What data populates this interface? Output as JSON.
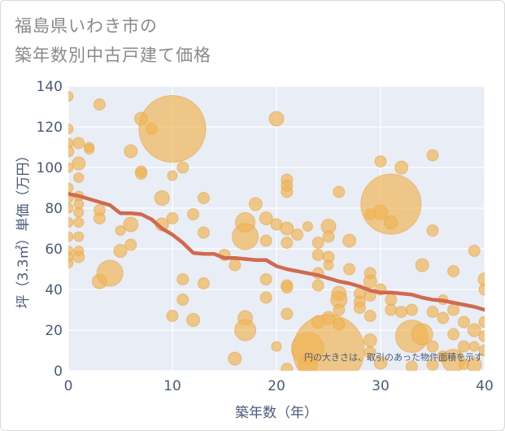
{
  "title_line1": "福島県いわき市の",
  "title_line2": "築年数別中古戸建て価格",
  "colors": {
    "bubble_fill": "#f0b454",
    "bubble_stroke": "#e2a23e",
    "trend_line": "#d06a4e",
    "plot_bg": "#e8edf6",
    "grid": "#ffffff"
  },
  "chart_data": {
    "type": "scatter",
    "xlabel": "築年数（年）",
    "ylabel": "坪（3.3㎡）単価（万円）",
    "xlim": [
      0,
      40
    ],
    "ylim": [
      0,
      140
    ],
    "x_ticks": [
      0,
      10,
      20,
      30,
      40
    ],
    "y_ticks": [
      0,
      20,
      40,
      60,
      80,
      100,
      120,
      140
    ],
    "grid": true,
    "note": "円の大きさは、取引のあった物件面積を示す",
    "trend": {
      "x": [
        0,
        1,
        2,
        3,
        4,
        5,
        6,
        7,
        8,
        9,
        10,
        11,
        12,
        13,
        14,
        15,
        16,
        17,
        18,
        19,
        20,
        21,
        22,
        23,
        24,
        25,
        26,
        27,
        28,
        29,
        30,
        31,
        32,
        33,
        34,
        35,
        36,
        37,
        38,
        39,
        40
      ],
      "y": [
        87,
        86,
        84.5,
        83,
        81.5,
        77.5,
        77.5,
        77,
        74.5,
        70,
        67,
        63,
        58,
        57.5,
        57.5,
        55.5,
        55.5,
        55,
        54.5,
        54.5,
        51.5,
        50,
        49,
        48,
        47,
        45.5,
        44,
        43,
        41.5,
        39.5,
        38.5,
        38.5,
        38,
        37.5,
        36,
        35,
        34.5,
        33.5,
        32.5,
        31.5,
        30
      ]
    },
    "points": [
      {
        "x": 0,
        "y": 135,
        "s": 6
      },
      {
        "x": 0,
        "y": 119,
        "s": 6
      },
      {
        "x": 0,
        "y": 112,
        "s": 6
      },
      {
        "x": 0,
        "y": 108,
        "s": 7
      },
      {
        "x": 0,
        "y": 100,
        "s": 6
      },
      {
        "x": 0,
        "y": 90,
        "s": 6
      },
      {
        "x": 0,
        "y": 85,
        "s": 6
      },
      {
        "x": 0,
        "y": 80,
        "s": 6
      },
      {
        "x": 0,
        "y": 73,
        "s": 6
      },
      {
        "x": 0,
        "y": 66,
        "s": 6
      },
      {
        "x": 0,
        "y": 59,
        "s": 6
      },
      {
        "x": 0,
        "y": 56,
        "s": 6
      },
      {
        "x": 0,
        "y": 53,
        "s": 6
      },
      {
        "x": 1,
        "y": 112,
        "s": 7
      },
      {
        "x": 1,
        "y": 102,
        "s": 8
      },
      {
        "x": 1,
        "y": 95,
        "s": 6
      },
      {
        "x": 1,
        "y": 86,
        "s": 6
      },
      {
        "x": 1,
        "y": 82,
        "s": 6
      },
      {
        "x": 1,
        "y": 78,
        "s": 6
      },
      {
        "x": 1,
        "y": 73,
        "s": 6
      },
      {
        "x": 1,
        "y": 66,
        "s": 6
      },
      {
        "x": 1,
        "y": 59,
        "s": 6
      },
      {
        "x": 1,
        "y": 56,
        "s": 7
      },
      {
        "x": 2,
        "y": 110,
        "s": 6
      },
      {
        "x": 2,
        "y": 109,
        "s": 6
      },
      {
        "x": 3,
        "y": 131,
        "s": 7
      },
      {
        "x": 3,
        "y": 79,
        "s": 7
      },
      {
        "x": 3,
        "y": 75,
        "s": 7
      },
      {
        "x": 3,
        "y": 44,
        "s": 9
      },
      {
        "x": 4,
        "y": 48,
        "s": 16
      },
      {
        "x": 5,
        "y": 59,
        "s": 8
      },
      {
        "x": 5,
        "y": 69,
        "s": 6
      },
      {
        "x": 6,
        "y": 108,
        "s": 8
      },
      {
        "x": 6,
        "y": 72,
        "s": 9
      },
      {
        "x": 6,
        "y": 62,
        "s": 7
      },
      {
        "x": 7,
        "y": 124,
        "s": 8
      },
      {
        "x": 7,
        "y": 98,
        "s": 7
      },
      {
        "x": 7,
        "y": 97,
        "s": 7
      },
      {
        "x": 8,
        "y": 119,
        "s": 7
      },
      {
        "x": 9,
        "y": 85,
        "s": 9
      },
      {
        "x": 9,
        "y": 72,
        "s": 8
      },
      {
        "x": 10,
        "y": 119,
        "s": 41
      },
      {
        "x": 10,
        "y": 96,
        "s": 6
      },
      {
        "x": 10,
        "y": 75,
        "s": 7
      },
      {
        "x": 10,
        "y": 27,
        "s": 7
      },
      {
        "x": 11,
        "y": 100,
        "s": 7
      },
      {
        "x": 11,
        "y": 45,
        "s": 7
      },
      {
        "x": 11,
        "y": 35,
        "s": 7
      },
      {
        "x": 12,
        "y": 77,
        "s": 7
      },
      {
        "x": 12,
        "y": 25,
        "s": 8
      },
      {
        "x": 13,
        "y": 85,
        "s": 7
      },
      {
        "x": 13,
        "y": 68,
        "s": 7
      },
      {
        "x": 13,
        "y": 43,
        "s": 7
      },
      {
        "x": 15,
        "y": 57,
        "s": 7
      },
      {
        "x": 16,
        "y": 52,
        "s": 7
      },
      {
        "x": 16,
        "y": 6,
        "s": 8
      },
      {
        "x": 17,
        "y": 73,
        "s": 12
      },
      {
        "x": 17,
        "y": 66,
        "s": 16
      },
      {
        "x": 17,
        "y": 26,
        "s": 9
      },
      {
        "x": 17,
        "y": 20,
        "s": 13
      },
      {
        "x": 18,
        "y": 82,
        "s": 8
      },
      {
        "x": 19,
        "y": 75,
        "s": 8
      },
      {
        "x": 19,
        "y": 64,
        "s": 7
      },
      {
        "x": 19,
        "y": 45,
        "s": 7
      },
      {
        "x": 19,
        "y": 36,
        "s": 7
      },
      {
        "x": 20,
        "y": 124,
        "s": 9
      },
      {
        "x": 20,
        "y": 72,
        "s": 7
      },
      {
        "x": 20,
        "y": 12,
        "s": 6
      },
      {
        "x": 21,
        "y": 94,
        "s": 7
      },
      {
        "x": 21,
        "y": 91,
        "s": 7
      },
      {
        "x": 21,
        "y": 88,
        "s": 7
      },
      {
        "x": 21,
        "y": 70,
        "s": 8
      },
      {
        "x": 21,
        "y": 63,
        "s": 7
      },
      {
        "x": 21,
        "y": 42,
        "s": 7
      },
      {
        "x": 21,
        "y": 41,
        "s": 7
      },
      {
        "x": 21,
        "y": 28,
        "s": 7
      },
      {
        "x": 21,
        "y": 1,
        "s": 7
      },
      {
        "x": 22,
        "y": 67,
        "s": 7
      },
      {
        "x": 23,
        "y": 71,
        "s": 6
      },
      {
        "x": 23,
        "y": 11,
        "s": 20
      },
      {
        "x": 23,
        "y": 3,
        "s": 12
      },
      {
        "x": 24,
        "y": 63,
        "s": 7
      },
      {
        "x": 24,
        "y": 57,
        "s": 7
      },
      {
        "x": 24,
        "y": 48,
        "s": 7
      },
      {
        "x": 24,
        "y": 42,
        "s": 7
      },
      {
        "x": 24,
        "y": 24,
        "s": 8
      },
      {
        "x": 25,
        "y": 71,
        "s": 9
      },
      {
        "x": 25,
        "y": 66,
        "s": 7
      },
      {
        "x": 25,
        "y": 56,
        "s": 7
      },
      {
        "x": 25,
        "y": 52,
        "s": 6
      },
      {
        "x": 25,
        "y": 26,
        "s": 8
      },
      {
        "x": 25,
        "y": 10,
        "s": 44
      },
      {
        "x": 26,
        "y": 88,
        "s": 7
      },
      {
        "x": 26,
        "y": 38,
        "s": 9
      },
      {
        "x": 26,
        "y": 35,
        "s": 10
      },
      {
        "x": 26,
        "y": 30,
        "s": 7
      },
      {
        "x": 26,
        "y": 23,
        "s": 7
      },
      {
        "x": 27,
        "y": 64,
        "s": 8
      },
      {
        "x": 27,
        "y": 50,
        "s": 7
      },
      {
        "x": 28,
        "y": 38,
        "s": 7
      },
      {
        "x": 28,
        "y": 34,
        "s": 7
      },
      {
        "x": 28,
        "y": 31,
        "s": 7
      },
      {
        "x": 29,
        "y": 48,
        "s": 7
      },
      {
        "x": 29,
        "y": 44,
        "s": 8
      },
      {
        "x": 29,
        "y": 37,
        "s": 7
      },
      {
        "x": 29,
        "y": 27,
        "s": 7
      },
      {
        "x": 29,
        "y": 15,
        "s": 8
      },
      {
        "x": 29,
        "y": 9,
        "s": 7
      },
      {
        "x": 29,
        "y": 77,
        "s": 7
      },
      {
        "x": 30,
        "y": 103,
        "s": 7
      },
      {
        "x": 30,
        "y": 78,
        "s": 9
      },
      {
        "x": 30,
        "y": 40,
        "s": 7
      },
      {
        "x": 30,
        "y": 4,
        "s": 8
      },
      {
        "x": 31,
        "y": 82,
        "s": 37
      },
      {
        "x": 31,
        "y": 73,
        "s": 8
      },
      {
        "x": 31,
        "y": 35,
        "s": 7
      },
      {
        "x": 31,
        "y": 30,
        "s": 7
      },
      {
        "x": 32,
        "y": 100,
        "s": 8
      },
      {
        "x": 32,
        "y": 29,
        "s": 7
      },
      {
        "x": 33,
        "y": 30,
        "s": 7
      },
      {
        "x": 33,
        "y": 17,
        "s": 20
      },
      {
        "x": 33,
        "y": 2,
        "s": 7
      },
      {
        "x": 34,
        "y": 52,
        "s": 8
      },
      {
        "x": 34,
        "y": 18,
        "s": 13
      },
      {
        "x": 35,
        "y": 106,
        "s": 7
      },
      {
        "x": 35,
        "y": 69,
        "s": 7
      },
      {
        "x": 35,
        "y": 29,
        "s": 7
      },
      {
        "x": 35,
        "y": 12,
        "s": 7
      },
      {
        "x": 35,
        "y": 3,
        "s": 7
      },
      {
        "x": 36,
        "y": 35,
        "s": 6
      },
      {
        "x": 36,
        "y": 26,
        "s": 7
      },
      {
        "x": 36,
        "y": 7,
        "s": 7
      },
      {
        "x": 37,
        "y": 49,
        "s": 7
      },
      {
        "x": 37,
        "y": 30,
        "s": 7
      },
      {
        "x": 37,
        "y": 18,
        "s": 7
      },
      {
        "x": 37,
        "y": 5,
        "s": 14
      },
      {
        "x": 38,
        "y": 24,
        "s": 7
      },
      {
        "x": 38,
        "y": 12,
        "s": 7
      },
      {
        "x": 38,
        "y": 3,
        "s": 6
      },
      {
        "x": 39,
        "y": 59,
        "s": 7
      },
      {
        "x": 39,
        "y": 20,
        "s": 8
      },
      {
        "x": 39,
        "y": 12,
        "s": 6
      },
      {
        "x": 39,
        "y": 3,
        "s": 9
      },
      {
        "x": 40,
        "y": 45,
        "s": 8
      },
      {
        "x": 40,
        "y": 40,
        "s": 7
      },
      {
        "x": 40,
        "y": 24,
        "s": 7
      },
      {
        "x": 40,
        "y": 17,
        "s": 7
      },
      {
        "x": 40,
        "y": 10,
        "s": 7
      }
    ]
  }
}
